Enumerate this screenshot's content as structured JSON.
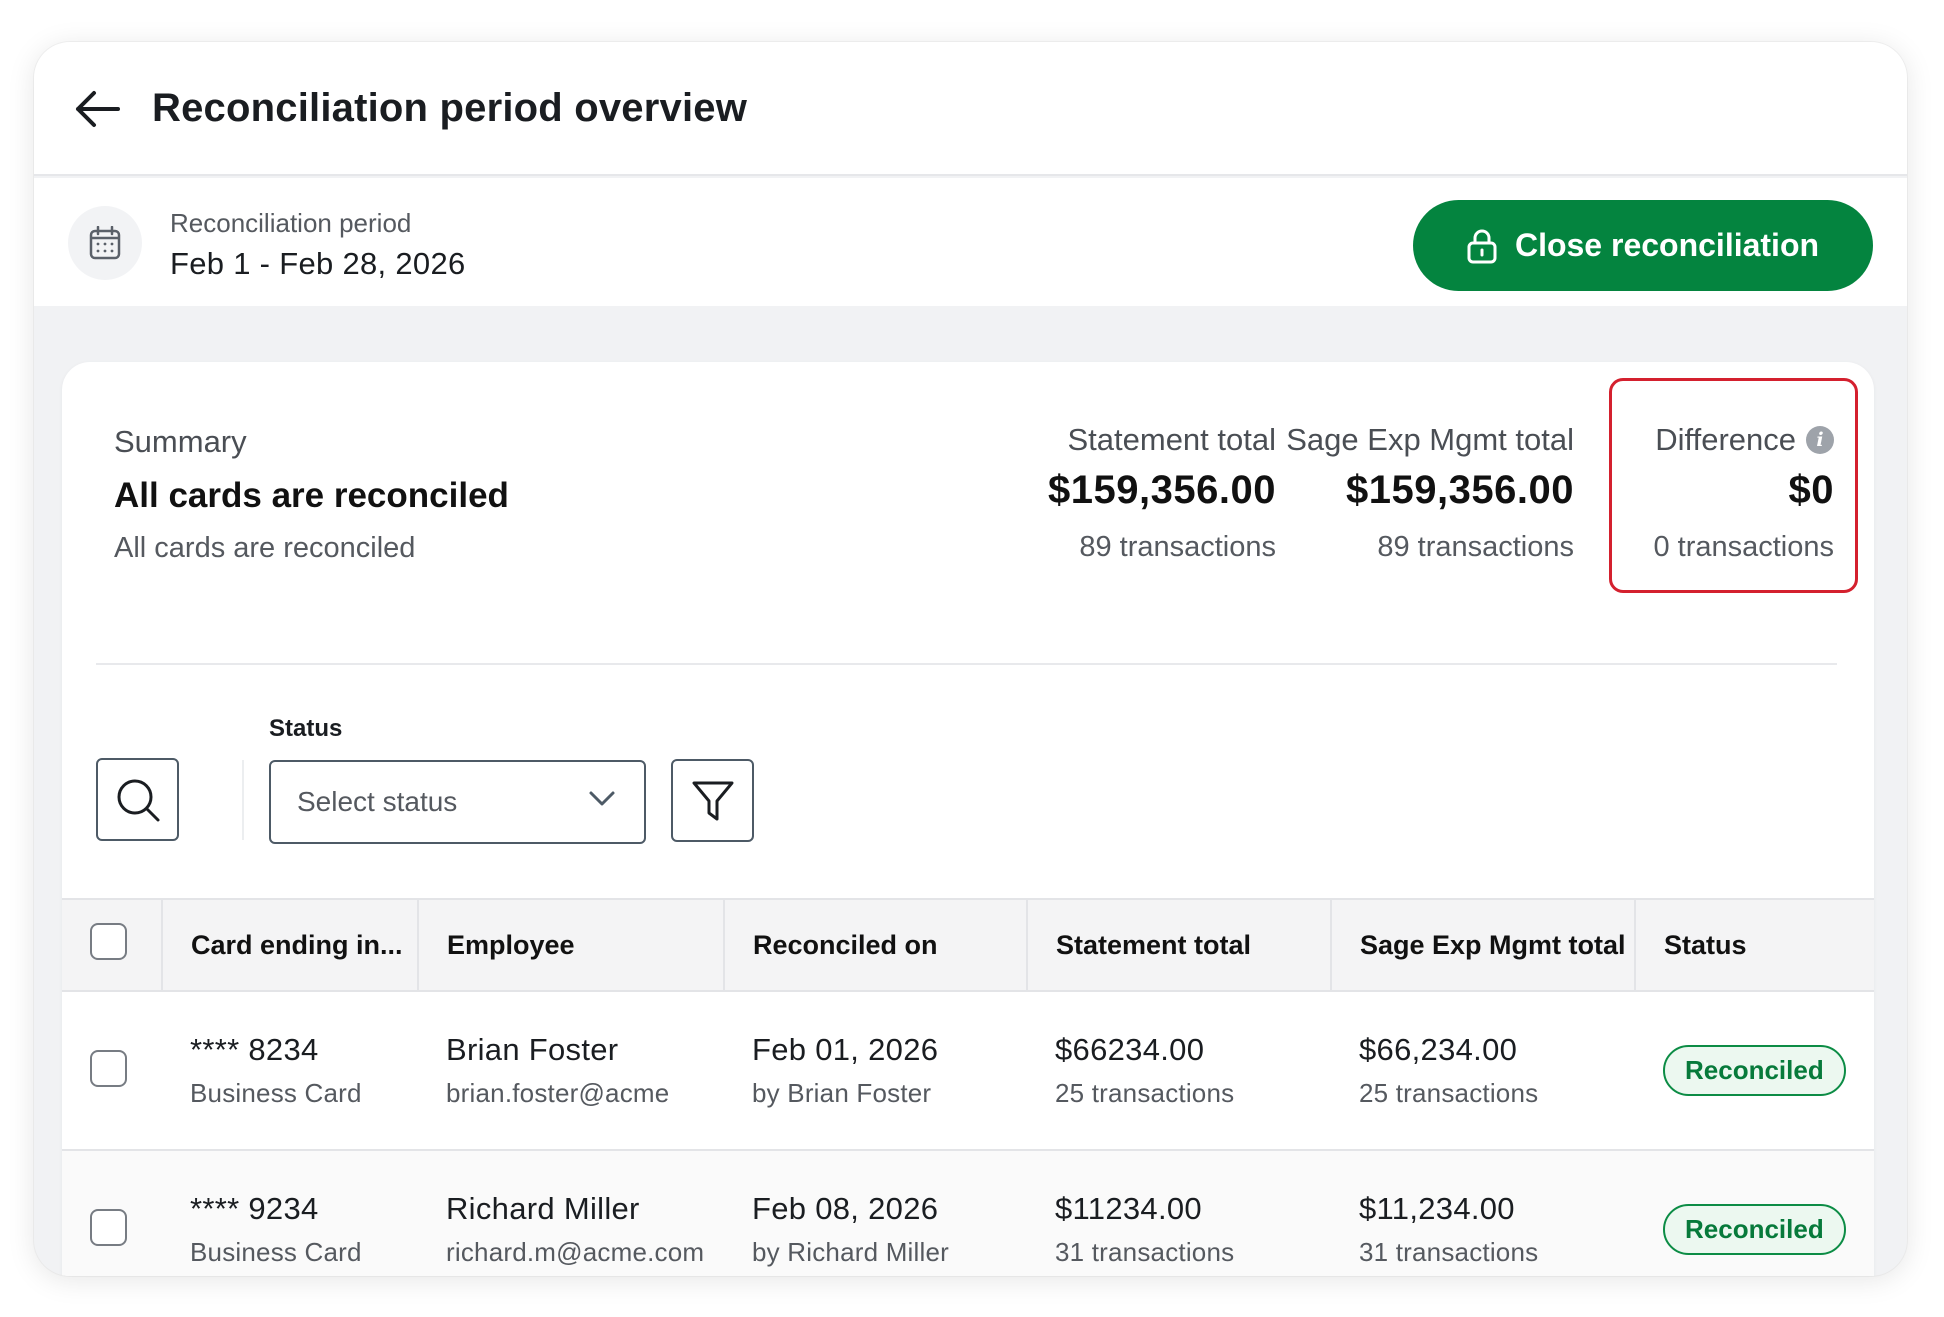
{
  "header": {
    "title": "Reconciliation period overview",
    "back_icon": "arrow-left-icon"
  },
  "period": {
    "label": "Reconciliation period",
    "value": "Feb 1 - Feb 28, 2026",
    "close_button_label": "Close reconciliation"
  },
  "summary": {
    "label": "Summary",
    "title": "All cards are reconciled",
    "subtitle": "All cards are reconciled",
    "statement": {
      "label": "Statement total",
      "value": "$159,356.00",
      "count": "89 transactions"
    },
    "sage": {
      "label": "Sage Exp Mgmt total",
      "value": "$159,356.00",
      "count": "89 transactions"
    },
    "difference": {
      "label": "Difference",
      "value": "$0",
      "count": "0 transactions"
    }
  },
  "filters": {
    "status_label": "Status",
    "status_placeholder": "Select status"
  },
  "table": {
    "columns": [
      "Card ending in...",
      "Employee",
      "Reconciled on",
      "Statement total",
      "Sage Exp Mgmt total",
      "Status"
    ],
    "rows": [
      {
        "card": "**** 8234",
        "card_type": "Business Card",
        "employee": "Brian Foster",
        "email": "brian.foster@acme",
        "reconciled_on": "Feb 01, 2026",
        "reconciled_by": "by Brian Foster",
        "statement_total": "$66234.00",
        "statement_count": "25 transactions",
        "sage_total": "$66,234.00",
        "sage_count": "25 transactions",
        "status": "Reconciled"
      },
      {
        "card": "**** 9234",
        "card_type": "Business Card",
        "employee": "Richard Miller",
        "email": "richard.m@acme.com",
        "reconciled_on": "Feb 08, 2026",
        "reconciled_by": "by Richard Miller",
        "statement_total": "$11234.00",
        "statement_count": "31 transactions",
        "sage_total": "$11,234.00",
        "sage_count": "31 transactions",
        "status": "Reconciled"
      }
    ]
  },
  "colors": {
    "primary_green": "#04843f",
    "highlight_red": "#d4202e",
    "badge_green": "#0c8c45"
  }
}
